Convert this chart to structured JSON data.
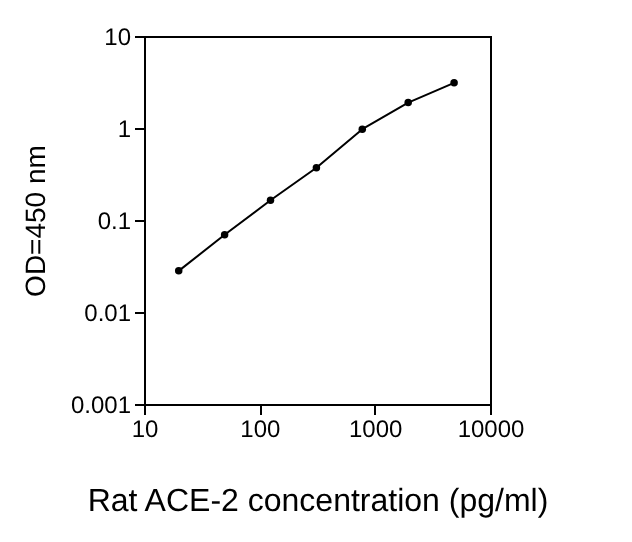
{
  "chart_data": {
    "type": "line",
    "xlabel": "Rat ACE-2 concentration (pg/ml)",
    "ylabel": "OD=450 nm",
    "x": [
      20,
      50,
      125,
      312.5,
      781,
      1953,
      4883
    ],
    "series": [
      {
        "color": "#000000",
        "values": [
          0.028,
          0.069,
          0.164,
          0.37,
          0.97,
          1.89,
          3.1
        ]
      }
    ],
    "log": "xy",
    "xlim": [
      10,
      10000
    ],
    "ylim": [
      0.001,
      10
    ],
    "xticks": [
      10,
      100,
      1000,
      10000
    ],
    "yticks": [
      0.001,
      0.01,
      0.1,
      1,
      10
    ],
    "marker": "circle",
    "line_style": "solid",
    "grid": false
  }
}
